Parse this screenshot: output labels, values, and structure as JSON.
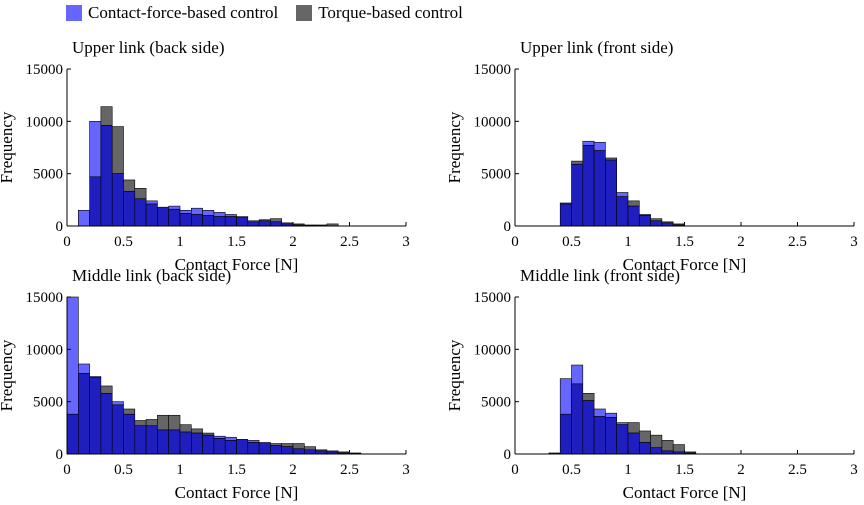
{
  "colors": {
    "contact_face": "#6666ff",
    "contact_overlap": "#1f1fbf",
    "torque_face": "#666666",
    "axis": "#000000"
  },
  "legend": {
    "contact_label": "Contact-force-based control",
    "torque_label": "Torque-based control"
  },
  "chart_data": [
    {
      "type": "bar",
      "title": "Upper link (back side)",
      "xlabel": "Contact Force [N]",
      "ylabel": "Frequency",
      "xlim": [
        0,
        3
      ],
      "ylim": [
        0,
        15000
      ],
      "bin_width": 0.1,
      "bin_starts": [
        0.1,
        0.2,
        0.3,
        0.4,
        0.5,
        0.6,
        0.7,
        0.8,
        0.9,
        1.0,
        1.1,
        1.2,
        1.3,
        1.4,
        1.5,
        1.6,
        1.7,
        1.8,
        1.9,
        2.0,
        2.1,
        2.2,
        2.3
      ],
      "xticks": [
        "0",
        "0.5",
        "1",
        "1.5",
        "2",
        "2.5",
        "3"
      ],
      "yticks": [
        "0",
        "5000",
        "10000",
        "15000"
      ],
      "series": [
        {
          "name": "Contact-force-based control",
          "values": [
            1500,
            10000,
            9600,
            5000,
            3300,
            2600,
            2400,
            1800,
            1900,
            1500,
            1700,
            1500,
            1300,
            1100,
            900,
            500,
            500,
            400,
            200,
            100,
            50,
            30,
            20
          ]
        },
        {
          "name": "Torque-based control",
          "values": [
            0,
            4700,
            11400,
            9500,
            4400,
            3600,
            2100,
            1800,
            1600,
            1200,
            1100,
            1000,
            900,
            900,
            800,
            400,
            600,
            700,
            300,
            200,
            100,
            100,
            200
          ]
        }
      ]
    },
    {
      "type": "bar",
      "title": "Upper link (front side)",
      "xlabel": "Contact Force [N]",
      "ylabel": "Frequency",
      "xlim": [
        0,
        3
      ],
      "ylim": [
        0,
        15000
      ],
      "bin_width": 0.1,
      "bin_starts": [
        0.4,
        0.5,
        0.6,
        0.7,
        0.8,
        0.9,
        1.0,
        1.1,
        1.2,
        1.3,
        1.4
      ],
      "xticks": [
        "0",
        "0.5",
        "1",
        "1.5",
        "2",
        "2.5",
        "3"
      ],
      "yticks": [
        "0",
        "5000",
        "10000",
        "15000"
      ],
      "series": [
        {
          "name": "Contact-force-based control",
          "values": [
            2100,
            5900,
            8100,
            8000,
            6300,
            3200,
            1900,
            1000,
            500,
            300,
            100
          ]
        },
        {
          "name": "Torque-based control",
          "values": [
            2200,
            6200,
            7700,
            7200,
            6500,
            2800,
            2400,
            1100,
            700,
            400,
            200
          ]
        }
      ]
    },
    {
      "type": "bar",
      "title": "Middle link (back side)",
      "xlabel": "Contact Force [N]",
      "ylabel": "Frequency",
      "xlim": [
        0,
        3
      ],
      "ylim": [
        0,
        15000
      ],
      "bin_width": 0.1,
      "bin_starts": [
        0.0,
        0.1,
        0.2,
        0.3,
        0.4,
        0.5,
        0.6,
        0.7,
        0.8,
        0.9,
        1.0,
        1.1,
        1.2,
        1.3,
        1.4,
        1.5,
        1.6,
        1.7,
        1.8,
        1.9,
        2.0,
        2.1,
        2.2,
        2.3,
        2.4,
        2.5
      ],
      "xticks": [
        "0",
        "0.5",
        "1",
        "1.5",
        "2",
        "2.5",
        "3"
      ],
      "yticks": [
        "0",
        "5000",
        "10000",
        "15000"
      ],
      "series": [
        {
          "name": "Contact-force-based control",
          "values": [
            15000,
            8600,
            7400,
            5800,
            5000,
            3800,
            2700,
            2700,
            2300,
            2300,
            2100,
            2000,
            1800,
            1700,
            1600,
            1400,
            1300,
            1100,
            800,
            700,
            500,
            400,
            300,
            200,
            100,
            50
          ]
        },
        {
          "name": "Torque-based control",
          "values": [
            3800,
            7700,
            7300,
            6500,
            4700,
            4300,
            3200,
            3300,
            3700,
            3700,
            2800,
            2400,
            2000,
            1500,
            1300,
            1400,
            1100,
            1100,
            1000,
            1000,
            1000,
            700,
            400,
            300,
            200,
            100
          ]
        }
      ]
    },
    {
      "type": "bar",
      "title": "Middle link (front side)",
      "xlabel": "Contact Force [N]",
      "ylabel": "Frequency",
      "xlim": [
        0,
        3
      ],
      "ylim": [
        0,
        15000
      ],
      "bin_width": 0.1,
      "bin_starts": [
        0.3,
        0.4,
        0.5,
        0.6,
        0.7,
        0.8,
        0.9,
        1.0,
        1.1,
        1.2,
        1.3,
        1.4,
        1.5
      ],
      "xticks": [
        "0",
        "0.5",
        "1",
        "1.5",
        "2",
        "2.5",
        "3"
      ],
      "yticks": [
        "0",
        "5000",
        "10000",
        "15000"
      ],
      "series": [
        {
          "name": "Contact-force-based control",
          "values": [
            100,
            7200,
            8500,
            5100,
            4300,
            3900,
            3000,
            2000,
            1100,
            600,
            300,
            200,
            100
          ]
        },
        {
          "name": "Torque-based control",
          "values": [
            100,
            3800,
            6700,
            5800,
            3600,
            3500,
            2800,
            3000,
            2200,
            1800,
            1300,
            900,
            200
          ]
        }
      ]
    }
  ]
}
